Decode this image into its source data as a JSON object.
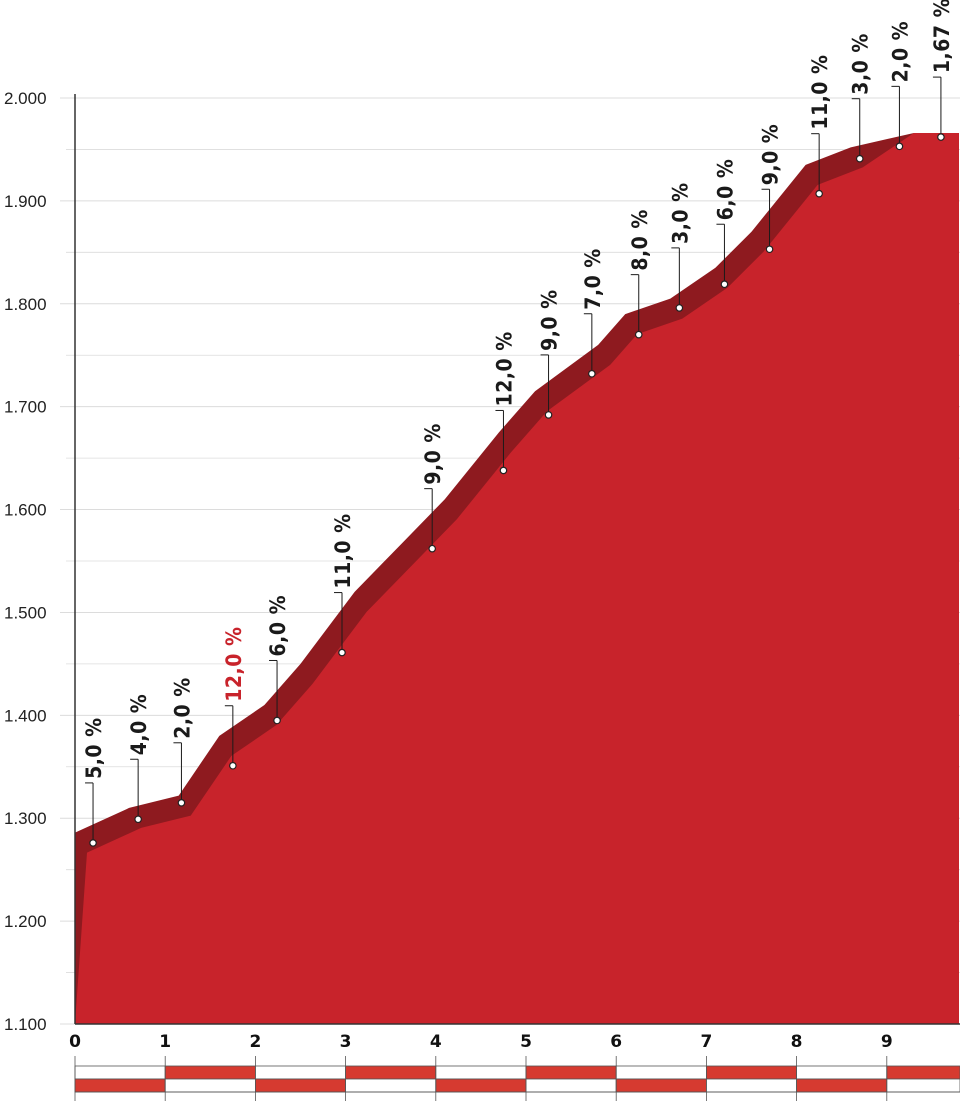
{
  "chart_data": {
    "type": "area",
    "title": "",
    "xlabel": "",
    "ylabel": "",
    "xlim": [
      0,
      9.8
    ],
    "ylim": [
      1100,
      2000
    ],
    "x_ticks": [
      "0",
      "1",
      "2",
      "3",
      "4",
      "5",
      "6",
      "7",
      "8",
      "9"
    ],
    "y_ticks": [
      "1.100",
      "1.200",
      "1.300",
      "1.400",
      "1.500",
      "1.600",
      "1.700",
      "1.800",
      "1.900",
      "2.000"
    ],
    "profile": [
      {
        "km": 0.0,
        "alt": 1286
      },
      {
        "km": 0.6,
        "alt": 1310
      },
      {
        "km": 1.15,
        "alt": 1322
      },
      {
        "km": 1.6,
        "alt": 1380
      },
      {
        "km": 2.1,
        "alt": 1410
      },
      {
        "km": 2.5,
        "alt": 1450
      },
      {
        "km": 3.1,
        "alt": 1520
      },
      {
        "km": 3.6,
        "alt": 1565
      },
      {
        "km": 4.1,
        "alt": 1610
      },
      {
        "km": 4.7,
        "alt": 1675
      },
      {
        "km": 5.1,
        "alt": 1715
      },
      {
        "km": 5.8,
        "alt": 1760
      },
      {
        "km": 6.1,
        "alt": 1790
      },
      {
        "km": 6.6,
        "alt": 1805
      },
      {
        "km": 7.1,
        "alt": 1835
      },
      {
        "km": 7.5,
        "alt": 1870
      },
      {
        "km": 8.1,
        "alt": 1935
      },
      {
        "km": 8.6,
        "alt": 1952
      },
      {
        "km": 9.3,
        "alt": 1966
      },
      {
        "km": 9.8,
        "alt": 1966
      }
    ],
    "gradients": [
      {
        "label": "5,0 %",
        "km": 0.2,
        "alt": 1276,
        "highlight": false
      },
      {
        "label": "4,0 %",
        "km": 0.7,
        "alt": 1299,
        "highlight": false
      },
      {
        "label": "2,0 %",
        "km": 1.18,
        "alt": 1315,
        "highlight": false
      },
      {
        "label": "12,0 %",
        "km": 1.75,
        "alt": 1351,
        "highlight": true
      },
      {
        "label": "6,0 %",
        "km": 2.24,
        "alt": 1395,
        "highlight": false
      },
      {
        "label": "11,0 %",
        "km": 2.96,
        "alt": 1461,
        "highlight": false
      },
      {
        "label": "9,0 %",
        "km": 3.96,
        "alt": 1562,
        "highlight": false
      },
      {
        "label": "12,0 %",
        "km": 4.75,
        "alt": 1638,
        "highlight": false
      },
      {
        "label": "9,0 %",
        "km": 5.25,
        "alt": 1692,
        "highlight": false
      },
      {
        "label": "7,0 %",
        "km": 5.73,
        "alt": 1732,
        "highlight": false
      },
      {
        "label": "8,0 %",
        "km": 6.25,
        "alt": 1770,
        "highlight": false
      },
      {
        "label": "3,0 %",
        "km": 6.7,
        "alt": 1796,
        "highlight": false
      },
      {
        "label": "6,0 %",
        "km": 7.2,
        "alt": 1819,
        "highlight": false
      },
      {
        "label": "9,0 %",
        "km": 7.7,
        "alt": 1853,
        "highlight": false
      },
      {
        "label": "11,0 %",
        "km": 8.25,
        "alt": 1907,
        "highlight": false
      },
      {
        "label": "3,0 %",
        "km": 8.7,
        "alt": 1941,
        "highlight": false
      },
      {
        "label": "2,0 %",
        "km": 9.14,
        "alt": 1953,
        "highlight": false
      },
      {
        "label": "1,67 %",
        "km": 9.6,
        "alt": 1962,
        "highlight": false
      }
    ],
    "colors": {
      "fill": "#c8232b",
      "band": "#8e1a1f",
      "highlight_label": "#c8232b",
      "label": "#1a1a1a",
      "grid": "#dcdcdc",
      "bar_red": "#d63a30"
    },
    "grid": true,
    "legend": "none"
  }
}
